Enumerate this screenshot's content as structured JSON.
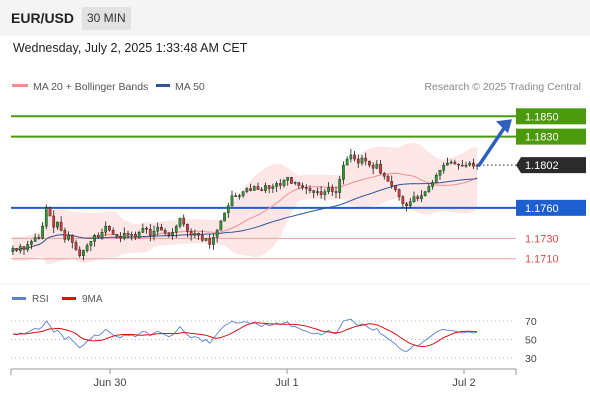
{
  "header": {
    "symbol": "EUR/USD",
    "timeframe": "30 MIN",
    "datetime": "Wednesday, July 2, 2025 1:33:48 AM CET"
  },
  "chart_data": {
    "type": "candlestick",
    "legend": [
      {
        "name": "MA 20 + Bollinger Bands",
        "color": "#f08f8f"
      },
      {
        "name": "MA 50",
        "color": "#2f5597"
      }
    ],
    "copyright": "Research © 2025 Trading Central",
    "price_range": [
      1.1692,
      1.1868
    ],
    "current_price": "1.1802",
    "levels": [
      {
        "value": 1.185,
        "label": "1.1850",
        "kind": "resistance",
        "color": "#4a9a0c"
      },
      {
        "value": 1.183,
        "label": "1.1830",
        "kind": "resistance",
        "color": "#4a9a0c"
      },
      {
        "value": 1.176,
        "label": "1.1760",
        "kind": "pivot",
        "color": "#1e5fd0"
      },
      {
        "value": 1.173,
        "label": "1.1730",
        "kind": "support",
        "color": "#e04a4a"
      },
      {
        "value": 1.171,
        "label": "1.1710",
        "kind": "support",
        "color": "#e04a4a"
      }
    ],
    "arrow": {
      "from": 1.1802,
      "to": 1.185
    },
    "x_ticks": [
      "Jun 30",
      "Jul 1",
      "Jul 2"
    ],
    "closes": [
      1.172,
      1.1718,
      1.1722,
      1.1719,
      1.1724,
      1.1727,
      1.1731,
      1.173,
      1.1742,
      1.176,
      1.1752,
      1.1741,
      1.1746,
      1.1738,
      1.1729,
      1.1733,
      1.1726,
      1.1719,
      1.1713,
      1.1718,
      1.1723,
      1.1727,
      1.1733,
      1.1731,
      1.1736,
      1.1742,
      1.1738,
      1.1734,
      1.1732,
      1.173,
      1.1735,
      1.1733,
      1.1734,
      1.1731,
      1.1736,
      1.174,
      1.1739,
      1.1733,
      1.1737,
      1.1741,
      1.1738,
      1.1735,
      1.1733,
      1.1736,
      1.1742,
      1.175,
      1.1744,
      1.1737,
      1.1733,
      1.1735,
      1.1733,
      1.1728,
      1.173,
      1.1724,
      1.1731,
      1.1738,
      1.1747,
      1.1755,
      1.1762,
      1.1772,
      1.1771,
      1.1772,
      1.1776,
      1.1779,
      1.1777,
      1.1781,
      1.1778,
      1.1777,
      1.1782,
      1.1779,
      1.1781,
      1.1784,
      1.1782,
      1.1787,
      1.179,
      1.1784,
      1.1785,
      1.1782,
      1.178,
      1.1779,
      1.1777,
      1.1775,
      1.1776,
      1.1773,
      1.1776,
      1.178,
      1.1776,
      1.1775,
      1.1788,
      1.1802,
      1.1808,
      1.1812,
      1.1808,
      1.1804,
      1.1809,
      1.1806,
      1.1802,
      1.1799,
      1.1803,
      1.1794,
      1.1791,
      1.1786,
      1.1782,
      1.1778,
      1.1771,
      1.1764,
      1.1762,
      1.1766,
      1.1771,
      1.1769,
      1.1772,
      1.1776,
      1.1781,
      1.1785,
      1.1792,
      1.1797,
      1.1802,
      1.1804,
      1.1805,
      1.1803,
      1.1802,
      1.1801,
      1.1802,
      1.1804,
      1.1801,
      1.1802
    ],
    "rsi": {
      "name": "RSI",
      "color": "#5b7fd6",
      "ma_name": "9MA",
      "ma_color": "#e01010",
      "levels": [
        70,
        50,
        30
      ],
      "range": [
        25,
        75
      ],
      "values": [
        56,
        55,
        57,
        56,
        58,
        60,
        62,
        61,
        64,
        70,
        65,
        58,
        60,
        56,
        50,
        53,
        49,
        45,
        41,
        44,
        48,
        51,
        55,
        54,
        57,
        61,
        58,
        55,
        53,
        52,
        55,
        54,
        55,
        53,
        56,
        59,
        58,
        54,
        57,
        59,
        57,
        55,
        53,
        55,
        59,
        64,
        59,
        55,
        52,
        53,
        52,
        48,
        50,
        46,
        51,
        56,
        61,
        65,
        67,
        70,
        68,
        68,
        69,
        69,
        67,
        69,
        66,
        64,
        67,
        65,
        66,
        68,
        66,
        68,
        69,
        64,
        64,
        62,
        60,
        59,
        57,
        56,
        57,
        55,
        57,
        60,
        57,
        56,
        63,
        70,
        71,
        72,
        68,
        65,
        67,
        65,
        62,
        60,
        62,
        56,
        54,
        51,
        48,
        45,
        41,
        38,
        37,
        40,
        44,
        43,
        46,
        49,
        52,
        55,
        58,
        60,
        61,
        60,
        60,
        59,
        58,
        57,
        58,
        58,
        57,
        58
      ]
    }
  }
}
